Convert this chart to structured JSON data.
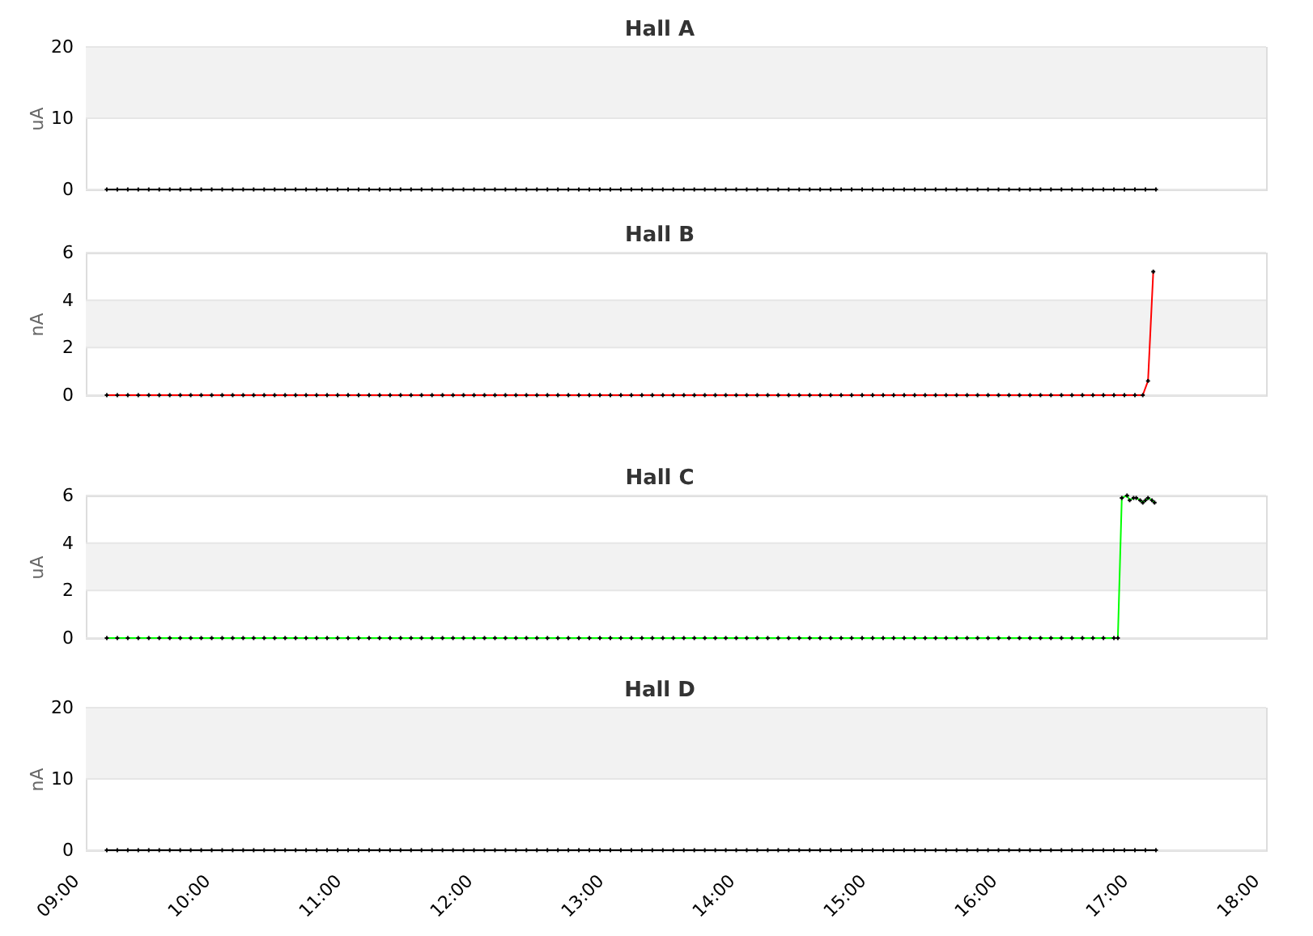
{
  "chart_data": [
    {
      "type": "line",
      "title": "Hall A",
      "ylabel": "uA",
      "color": "#000000",
      "marker": "cross",
      "grid": "y",
      "tick_labels": "y",
      "xlim": [
        9,
        18
      ],
      "ylim": [
        0,
        20
      ],
      "yticks": [
        0,
        10,
        20
      ],
      "bands": [
        {
          "axis": "y",
          "from": 10,
          "to": 20,
          "color": "#f2f2f2"
        }
      ],
      "x": [
        9.16,
        9.24,
        9.32,
        9.4,
        9.48,
        9.56,
        9.64,
        9.72,
        9.8,
        9.88,
        9.96,
        10.04,
        10.12,
        10.2,
        10.28,
        10.36,
        10.44,
        10.52,
        10.6,
        10.68,
        10.76,
        10.84,
        10.92,
        11,
        11.08,
        11.16,
        11.24,
        11.32,
        11.4,
        11.48,
        11.56,
        11.64,
        11.72,
        11.8,
        11.88,
        11.96,
        12.04,
        12.12,
        12.2,
        12.28,
        12.36,
        12.44,
        12.52,
        12.6,
        12.68,
        12.76,
        12.84,
        12.92,
        13,
        13.08,
        13.16,
        13.24,
        13.32,
        13.4,
        13.48,
        13.56,
        13.64,
        13.72,
        13.8,
        13.88,
        13.96,
        14.04,
        14.12,
        14.2,
        14.28,
        14.36,
        14.44,
        14.52,
        14.6,
        14.68,
        14.76,
        14.84,
        14.92,
        15,
        15.08,
        15.16,
        15.24,
        15.32,
        15.4,
        15.48,
        15.56,
        15.64,
        15.72,
        15.8,
        15.88,
        15.96,
        16.04,
        16.12,
        16.2,
        16.28,
        16.36,
        16.44,
        16.52,
        16.6,
        16.68,
        16.76,
        16.84,
        16.92,
        17,
        17.08,
        17.16
      ],
      "values": [
        0,
        0,
        0,
        0,
        0,
        0,
        0,
        0,
        0,
        0,
        0,
        0,
        0,
        0,
        0,
        0,
        0,
        0,
        0,
        0,
        0,
        0,
        0,
        0,
        0,
        0,
        0,
        0,
        0,
        0,
        0,
        0,
        0,
        0,
        0,
        0,
        0,
        0,
        0,
        0,
        0,
        0,
        0,
        0,
        0,
        0,
        0,
        0,
        0,
        0,
        0,
        0,
        0,
        0,
        0,
        0,
        0,
        0,
        0,
        0,
        0,
        0,
        0,
        0,
        0,
        0,
        0,
        0,
        0,
        0,
        0,
        0,
        0,
        0,
        0,
        0,
        0,
        0,
        0,
        0,
        0,
        0,
        0,
        0,
        0,
        0,
        0,
        0,
        0,
        0,
        0,
        0,
        0,
        0,
        0,
        0,
        0,
        0,
        0,
        0,
        0
      ]
    },
    {
      "type": "line",
      "title": "Hall B",
      "ylabel": "nA",
      "color": "#ff0000",
      "marker": "cross",
      "grid": "y",
      "tick_labels": "y",
      "xlim": [
        9,
        18
      ],
      "ylim": [
        0,
        6
      ],
      "yticks": [
        0,
        2,
        4,
        6
      ],
      "bands": [
        {
          "axis": "y",
          "from": 2,
          "to": 4,
          "color": "#f2f2f2"
        }
      ],
      "x": [
        9.16,
        9.24,
        9.32,
        9.4,
        9.48,
        9.56,
        9.64,
        9.72,
        9.8,
        9.88,
        9.96,
        10.04,
        10.12,
        10.2,
        10.28,
        10.36,
        10.44,
        10.52,
        10.6,
        10.68,
        10.76,
        10.84,
        10.92,
        11,
        11.08,
        11.16,
        11.24,
        11.32,
        11.4,
        11.48,
        11.56,
        11.64,
        11.72,
        11.8,
        11.88,
        11.96,
        12.04,
        12.12,
        12.2,
        12.28,
        12.36,
        12.44,
        12.52,
        12.6,
        12.68,
        12.76,
        12.84,
        12.92,
        13,
        13.08,
        13.16,
        13.24,
        13.32,
        13.4,
        13.48,
        13.56,
        13.64,
        13.72,
        13.8,
        13.88,
        13.96,
        14.04,
        14.12,
        14.2,
        14.28,
        14.36,
        14.44,
        14.52,
        14.6,
        14.68,
        14.76,
        14.84,
        14.92,
        15,
        15.08,
        15.16,
        15.24,
        15.32,
        15.4,
        15.48,
        15.56,
        15.64,
        15.72,
        15.8,
        15.88,
        15.96,
        16.04,
        16.12,
        16.2,
        16.28,
        16.36,
        16.44,
        16.52,
        16.6,
        16.68,
        16.76,
        16.84,
        16.92,
        17,
        17.06,
        17.1,
        17.14
      ],
      "values": [
        0,
        0,
        0,
        0,
        0,
        0,
        0,
        0,
        0,
        0,
        0,
        0,
        0,
        0,
        0,
        0,
        0,
        0,
        0,
        0,
        0,
        0,
        0,
        0,
        0,
        0,
        0,
        0,
        0,
        0,
        0,
        0,
        0,
        0,
        0,
        0,
        0,
        0,
        0,
        0,
        0,
        0,
        0,
        0,
        0,
        0,
        0,
        0,
        0,
        0,
        0,
        0,
        0,
        0,
        0,
        0,
        0,
        0,
        0,
        0,
        0,
        0,
        0,
        0,
        0,
        0,
        0,
        0,
        0,
        0,
        0,
        0,
        0,
        0,
        0,
        0,
        0,
        0,
        0,
        0,
        0,
        0,
        0,
        0,
        0,
        0,
        0,
        0,
        0,
        0,
        0,
        0,
        0,
        0,
        0,
        0,
        0,
        0,
        0,
        0,
        0.6,
        5.2
      ]
    },
    {
      "type": "line",
      "title": "Hall C",
      "ylabel": "uA",
      "color": "#00ff00",
      "marker": "cross",
      "grid": "y",
      "tick_labels": "y",
      "xlim": [
        9,
        18
      ],
      "ylim": [
        0,
        6
      ],
      "yticks": [
        0,
        2,
        4,
        6
      ],
      "bands": [
        {
          "axis": "y",
          "from": 2,
          "to": 4,
          "color": "#f2f2f2"
        }
      ],
      "x": [
        9.16,
        9.24,
        9.32,
        9.4,
        9.48,
        9.56,
        9.64,
        9.72,
        9.8,
        9.88,
        9.96,
        10.04,
        10.12,
        10.2,
        10.28,
        10.36,
        10.44,
        10.52,
        10.6,
        10.68,
        10.76,
        10.84,
        10.92,
        11,
        11.08,
        11.16,
        11.24,
        11.32,
        11.4,
        11.48,
        11.56,
        11.64,
        11.72,
        11.8,
        11.88,
        11.96,
        12.04,
        12.12,
        12.2,
        12.28,
        12.36,
        12.44,
        12.52,
        12.6,
        12.68,
        12.76,
        12.84,
        12.92,
        13,
        13.08,
        13.16,
        13.24,
        13.32,
        13.4,
        13.48,
        13.56,
        13.64,
        13.72,
        13.8,
        13.88,
        13.96,
        14.04,
        14.12,
        14.2,
        14.28,
        14.36,
        14.44,
        14.52,
        14.6,
        14.68,
        14.76,
        14.84,
        14.92,
        15,
        15.08,
        15.16,
        15.24,
        15.32,
        15.4,
        15.48,
        15.56,
        15.64,
        15.72,
        15.8,
        15.88,
        15.96,
        16.04,
        16.12,
        16.2,
        16.28,
        16.36,
        16.44,
        16.52,
        16.6,
        16.68,
        16.76,
        16.84,
        16.87,
        16.9,
        16.94,
        16.96,
        16.99,
        17.01,
        17.04,
        17.06,
        17.08,
        17.1,
        17.13,
        17.15
      ],
      "values": [
        0,
        0,
        0,
        0,
        0,
        0,
        0,
        0,
        0,
        0,
        0,
        0,
        0,
        0,
        0,
        0,
        0,
        0,
        0,
        0,
        0,
        0,
        0,
        0,
        0,
        0,
        0,
        0,
        0,
        0,
        0,
        0,
        0,
        0,
        0,
        0,
        0,
        0,
        0,
        0,
        0,
        0,
        0,
        0,
        0,
        0,
        0,
        0,
        0,
        0,
        0,
        0,
        0,
        0,
        0,
        0,
        0,
        0,
        0,
        0,
        0,
        0,
        0,
        0,
        0,
        0,
        0,
        0,
        0,
        0,
        0,
        0,
        0,
        0,
        0,
        0,
        0,
        0,
        0,
        0,
        0,
        0,
        0,
        0,
        0,
        0,
        0,
        0,
        0,
        0,
        0,
        0,
        0,
        0,
        0,
        0,
        0,
        0,
        5.9,
        6,
        5.8,
        5.9,
        5.9,
        5.8,
        5.7,
        5.8,
        5.9,
        5.8,
        5.7
      ]
    },
    {
      "type": "line",
      "title": "Hall D",
      "ylabel": "nA",
      "color": "#000000",
      "marker": "cross",
      "grid": "y",
      "xlim": [
        9,
        18
      ],
      "ylim": [
        0,
        20
      ],
      "yticks": [
        0,
        10,
        20
      ],
      "bands": [
        {
          "axis": "y",
          "from": 10,
          "to": 20,
          "color": "#f2f2f2"
        }
      ],
      "xticks": [
        {
          "value": 9,
          "label": "09:00"
        },
        {
          "value": 10,
          "label": "10:00"
        },
        {
          "value": 11,
          "label": "11:00"
        },
        {
          "value": 12,
          "label": "12:00"
        },
        {
          "value": 13,
          "label": "13:00"
        },
        {
          "value": 14,
          "label": "14:00"
        },
        {
          "value": 15,
          "label": "15:00"
        },
        {
          "value": 16,
          "label": "16:00"
        },
        {
          "value": 17,
          "label": "17:00"
        },
        {
          "value": 18,
          "label": "18:00"
        }
      ],
      "x": [
        9.16,
        9.24,
        9.32,
        9.4,
        9.48,
        9.56,
        9.64,
        9.72,
        9.8,
        9.88,
        9.96,
        10.04,
        10.12,
        10.2,
        10.28,
        10.36,
        10.44,
        10.52,
        10.6,
        10.68,
        10.76,
        10.84,
        10.92,
        11,
        11.08,
        11.16,
        11.24,
        11.32,
        11.4,
        11.48,
        11.56,
        11.64,
        11.72,
        11.8,
        11.88,
        11.96,
        12.04,
        12.12,
        12.2,
        12.28,
        12.36,
        12.44,
        12.52,
        12.6,
        12.68,
        12.76,
        12.84,
        12.92,
        13,
        13.08,
        13.16,
        13.24,
        13.32,
        13.4,
        13.48,
        13.56,
        13.64,
        13.72,
        13.8,
        13.88,
        13.96,
        14.04,
        14.12,
        14.2,
        14.28,
        14.36,
        14.44,
        14.52,
        14.6,
        14.68,
        14.76,
        14.84,
        14.92,
        15,
        15.08,
        15.16,
        15.24,
        15.32,
        15.4,
        15.48,
        15.56,
        15.64,
        15.72,
        15.8,
        15.88,
        15.96,
        16.04,
        16.12,
        16.2,
        16.28,
        16.36,
        16.44,
        16.52,
        16.6,
        16.68,
        16.76,
        16.84,
        16.92,
        17,
        17.08,
        17.16
      ],
      "values": [
        0,
        0,
        0,
        0,
        0,
        0,
        0,
        0,
        0,
        0,
        0,
        0,
        0,
        0,
        0,
        0,
        0,
        0,
        0,
        0,
        0,
        0,
        0,
        0,
        0,
        0,
        0,
        0,
        0,
        0,
        0,
        0,
        0,
        0,
        0,
        0,
        0,
        0,
        0,
        0,
        0,
        0,
        0,
        0,
        0,
        0,
        0,
        0,
        0,
        0,
        0,
        0,
        0,
        0,
        0,
        0,
        0,
        0,
        0,
        0,
        0,
        0,
        0,
        0,
        0,
        0,
        0,
        0,
        0,
        0,
        0,
        0,
        0,
        0,
        0,
        0,
        0,
        0,
        0,
        0,
        0,
        0,
        0,
        0,
        0,
        0,
        0,
        0,
        0,
        0,
        0,
        0,
        0,
        0,
        0,
        0,
        0,
        0,
        0,
        0,
        0
      ]
    }
  ]
}
